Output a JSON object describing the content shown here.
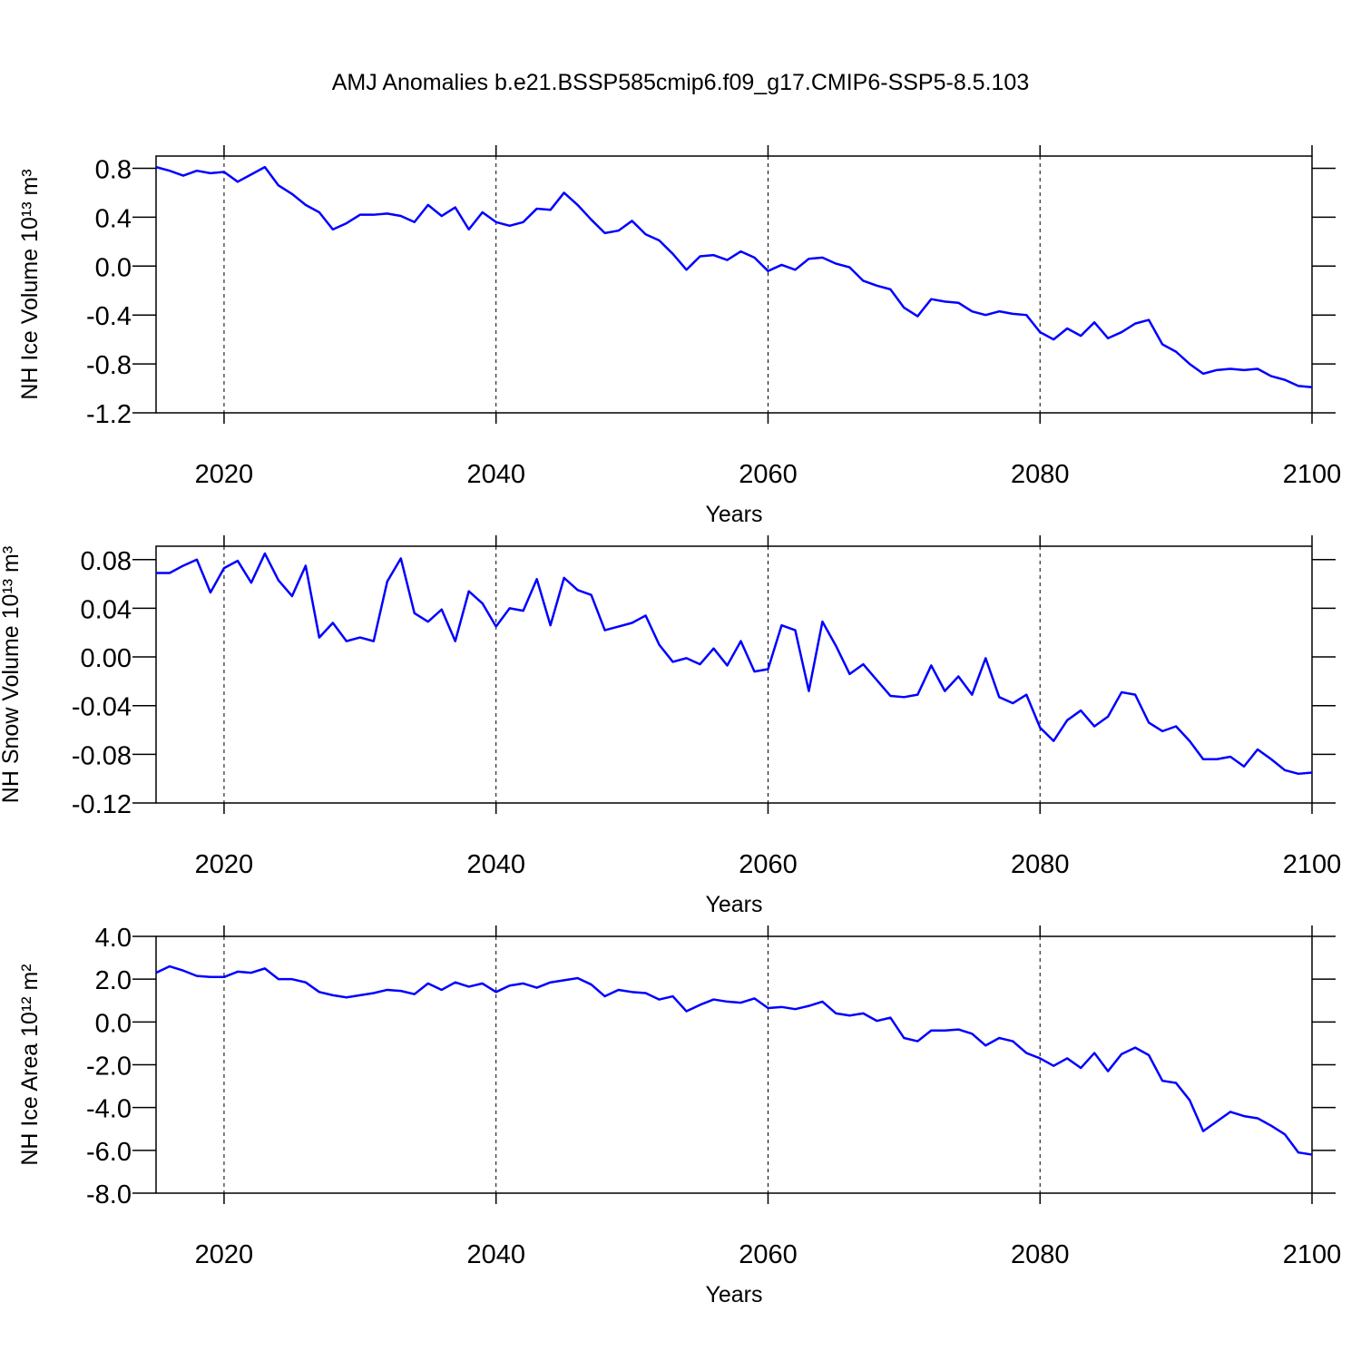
{
  "chart_data": [
    {
      "type": "line",
      "title": "AMJ Anomalies b.e21.BSSP585cmip6.f09_g17.CMIP6-SSP5-8.5.103",
      "xlabel": "Years",
      "ylabel": "NH Ice Volume 10¹³ m³",
      "color": "#0000ff",
      "xgrid": true,
      "xlim": [
        2015,
        2100
      ],
      "xticks": [
        2020,
        2040,
        2060,
        2080,
        2100
      ],
      "ylim": [
        -1.2,
        0.9
      ],
      "yticks": [
        -1.2,
        -0.8,
        -0.4,
        {
          "value": 0,
          "label": "0.0"
        },
        0.4,
        0.8
      ],
      "x": [
        2015,
        2016,
        2017,
        2018,
        2019,
        2020,
        2021,
        2022,
        2023,
        2024,
        2025,
        2026,
        2027,
        2028,
        2029,
        2030,
        2031,
        2032,
        2033,
        2034,
        2035,
        2036,
        2037,
        2038,
        2039,
        2040,
        2041,
        2042,
        2043,
        2044,
        2045,
        2046,
        2047,
        2048,
        2049,
        2050,
        2051,
        2052,
        2053,
        2054,
        2055,
        2056,
        2057,
        2058,
        2059,
        2060,
        2061,
        2062,
        2063,
        2064,
        2065,
        2066,
        2067,
        2068,
        2069,
        2070,
        2071,
        2072,
        2073,
        2074,
        2075,
        2076,
        2077,
        2078,
        2079,
        2080,
        2081,
        2082,
        2083,
        2084,
        2085,
        2086,
        2087,
        2088,
        2089,
        2090,
        2091,
        2092,
        2093,
        2094,
        2095,
        2096,
        2097,
        2098,
        2099,
        2100
      ],
      "values": [
        0.81,
        0.78,
        0.74,
        0.78,
        0.76,
        0.77,
        0.69,
        0.75,
        0.81,
        0.66,
        0.59,
        0.5,
        0.44,
        0.3,
        0.35,
        0.42,
        0.42,
        0.43,
        0.41,
        0.36,
        0.5,
        0.41,
        0.48,
        0.3,
        0.44,
        0.36,
        0.33,
        0.36,
        0.47,
        0.46,
        0.6,
        0.5,
        0.38,
        0.27,
        0.29,
        0.37,
        0.26,
        0.21,
        0.1,
        -0.03,
        0.08,
        0.09,
        0.05,
        0.12,
        0.07,
        -0.04,
        0.01,
        -0.03,
        0.06,
        0.07,
        0.02,
        -0.01,
        -0.12,
        -0.16,
        -0.19,
        -0.34,
        -0.41,
        -0.27,
        -0.29,
        -0.3,
        -0.37,
        -0.4,
        -0.37,
        -0.39,
        -0.4,
        -0.54,
        -0.6,
        -0.51,
        -0.57,
        -0.46,
        -0.59,
        -0.54,
        -0.47,
        -0.44,
        -0.64,
        -0.7,
        -0.8,
        -0.88,
        -0.85,
        -0.84,
        -0.85,
        -0.84,
        -0.9,
        -0.93,
        -0.98,
        -0.99
      ]
    },
    {
      "type": "line",
      "xlabel": "Years",
      "ylabel": "NH Snow Volume 10¹³ m³",
      "color": "#0000ff",
      "xgrid": true,
      "xlim": [
        2015,
        2100
      ],
      "xticks": [
        2020,
        2040,
        2060,
        2080,
        2100
      ],
      "ylim": [
        -0.12,
        0.091
      ],
      "yticks": [
        -0.12,
        -0.08,
        -0.04,
        {
          "value": 0,
          "label": "0.00"
        },
        0.04,
        0.08
      ],
      "x": [
        2015,
        2016,
        2017,
        2018,
        2019,
        2020,
        2021,
        2022,
        2023,
        2024,
        2025,
        2026,
        2027,
        2028,
        2029,
        2030,
        2031,
        2032,
        2033,
        2034,
        2035,
        2036,
        2037,
        2038,
        2039,
        2040,
        2041,
        2042,
        2043,
        2044,
        2045,
        2046,
        2047,
        2048,
        2049,
        2050,
        2051,
        2052,
        2053,
        2054,
        2055,
        2056,
        2057,
        2058,
        2059,
        2060,
        2061,
        2062,
        2063,
        2064,
        2065,
        2066,
        2067,
        2068,
        2069,
        2070,
        2071,
        2072,
        2073,
        2074,
        2075,
        2076,
        2077,
        2078,
        2079,
        2080,
        2081,
        2082,
        2083,
        2084,
        2085,
        2086,
        2087,
        2088,
        2089,
        2090,
        2091,
        2092,
        2093,
        2094,
        2095,
        2096,
        2097,
        2098,
        2099,
        2100
      ],
      "values": [
        0.069,
        0.069,
        0.075,
        0.08,
        0.053,
        0.073,
        0.079,
        0.061,
        0.085,
        0.063,
        0.05,
        0.075,
        0.016,
        0.028,
        0.013,
        0.016,
        0.013,
        0.062,
        0.081,
        0.036,
        0.029,
        0.039,
        0.013,
        0.054,
        0.044,
        0.025,
        0.04,
        0.038,
        0.064,
        0.026,
        0.065,
        0.055,
        0.051,
        0.022,
        0.025,
        0.028,
        0.034,
        0.01,
        -0.004,
        -0.001,
        -0.006,
        0.007,
        -0.007,
        0.013,
        -0.012,
        -0.01,
        0.026,
        0.022,
        -0.028,
        0.029,
        0.009,
        -0.014,
        -0.006,
        -0.019,
        -0.032,
        -0.033,
        -0.031,
        -0.007,
        -0.028,
        -0.016,
        -0.031,
        -0.001,
        -0.033,
        -0.038,
        -0.031,
        -0.058,
        -0.069,
        -0.052,
        -0.044,
        -0.057,
        -0.049,
        -0.029,
        -0.031,
        -0.054,
        -0.061,
        -0.057,
        -0.069,
        -0.084,
        -0.084,
        -0.082,
        -0.09,
        -0.076,
        -0.084,
        -0.093,
        -0.096,
        -0.095
      ]
    },
    {
      "type": "line",
      "xlabel": "Years",
      "ylabel": "NH Ice Area 10¹² m²",
      "color": "#0000ff",
      "xgrid": true,
      "xlim": [
        2015,
        2100
      ],
      "xticks": [
        2020,
        2040,
        2060,
        2080,
        2100
      ],
      "ylim": [
        -8,
        4
      ],
      "yticks": [
        {
          "value": -8,
          "label": "-8.0"
        },
        {
          "value": -6,
          "label": "-6.0"
        },
        {
          "value": -4,
          "label": "-4.0"
        },
        {
          "value": -2,
          "label": "-2.0"
        },
        {
          "value": 0,
          "label": "0.0"
        },
        {
          "value": 2,
          "label": "2.0"
        },
        {
          "value": 4,
          "label": "4.0"
        }
      ],
      "x": [
        2015,
        2016,
        2017,
        2018,
        2019,
        2020,
        2021,
        2022,
        2023,
        2024,
        2025,
        2026,
        2027,
        2028,
        2029,
        2030,
        2031,
        2032,
        2033,
        2034,
        2035,
        2036,
        2037,
        2038,
        2039,
        2040,
        2041,
        2042,
        2043,
        2044,
        2045,
        2046,
        2047,
        2048,
        2049,
        2050,
        2051,
        2052,
        2053,
        2054,
        2055,
        2056,
        2057,
        2058,
        2059,
        2060,
        2061,
        2062,
        2063,
        2064,
        2065,
        2066,
        2067,
        2068,
        2069,
        2070,
        2071,
        2072,
        2073,
        2074,
        2075,
        2076,
        2077,
        2078,
        2079,
        2080,
        2081,
        2082,
        2083,
        2084,
        2085,
        2086,
        2087,
        2088,
        2089,
        2090,
        2091,
        2092,
        2093,
        2094,
        2095,
        2096,
        2097,
        2098,
        2099,
        2100
      ],
      "values": [
        2.3,
        2.6,
        2.4,
        2.15,
        2.1,
        2.1,
        2.35,
        2.3,
        2.5,
        2.0,
        2.0,
        1.85,
        1.4,
        1.25,
        1.15,
        1.25,
        1.35,
        1.5,
        1.45,
        1.3,
        1.8,
        1.5,
        1.85,
        1.65,
        1.8,
        1.4,
        1.7,
        1.8,
        1.6,
        1.85,
        1.95,
        2.05,
        1.75,
        1.2,
        1.5,
        1.4,
        1.35,
        1.05,
        1.2,
        0.5,
        0.8,
        1.05,
        0.95,
        0.9,
        1.1,
        0.65,
        0.7,
        0.6,
        0.75,
        0.95,
        0.4,
        0.3,
        0.4,
        0.05,
        0.2,
        -0.75,
        -0.9,
        -0.4,
        -0.4,
        -0.35,
        -0.55,
        -1.1,
        -0.75,
        -0.9,
        -1.45,
        -1.7,
        -2.05,
        -1.7,
        -2.15,
        -1.45,
        -2.3,
        -1.5,
        -1.2,
        -1.55,
        -2.75,
        -2.85,
        -3.65,
        -5.1,
        -4.65,
        -4.2,
        -4.4,
        -4.5,
        -4.85,
        -5.25,
        -6.1,
        -6.2
      ]
    }
  ]
}
